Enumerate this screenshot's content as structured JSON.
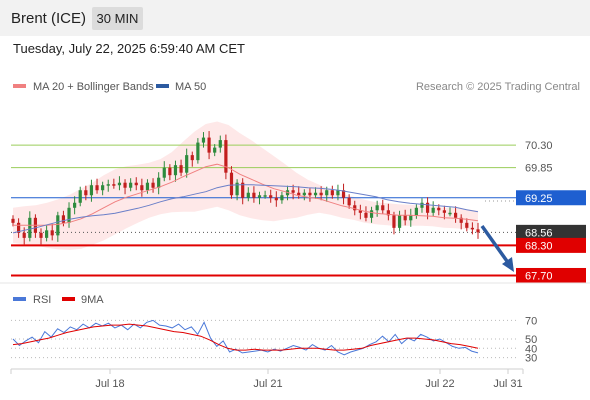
{
  "header": {
    "instrument": "Brent (ICE)",
    "interval": "30 MIN"
  },
  "datetime": "Tuesday, July 22, 2025 6:59:40 AM CET",
  "legend": {
    "ma20_label": "MA 20 + Bollinger Bands",
    "ma50_label": "MA 50",
    "ma20_color": "#f08080",
    "ma50_color": "#2c5aa0"
  },
  "copyright": "Research © 2025 Trading Central",
  "rsi_legend": {
    "rsi_label": "RSI",
    "ma9_label": "9MA",
    "rsi_color": "#4a78d8",
    "ma9_color": "#e00000"
  },
  "chart_data": {
    "type": "candlestick",
    "x_ticks": [
      "Jul 18",
      "Jul 21",
      "Jul 22",
      "Jul 31"
    ],
    "ylim": [
      67.55,
      71.0
    ],
    "levels": [
      {
        "label": "70.30",
        "value": 70.3,
        "kind": "resistance",
        "color": "#9acd5a"
      },
      {
        "label": "69.85",
        "value": 69.85,
        "kind": "resistance",
        "color": "#9acd5a"
      },
      {
        "label": "69.25",
        "value": 69.25,
        "kind": "pivot",
        "color": "#1e5fd0"
      },
      {
        "label": "68.56",
        "value": 68.56,
        "kind": "last",
        "color": "#333333"
      },
      {
        "label": "68.30",
        "value": 68.3,
        "kind": "support",
        "color": "#e00000"
      },
      {
        "label": "67.70",
        "value": 67.7,
        "kind": "support",
        "color": "#e00000"
      }
    ],
    "closes": [
      68.75,
      68.55,
      68.45,
      68.85,
      68.55,
      68.45,
      68.6,
      68.5,
      68.9,
      68.75,
      69.05,
      69.15,
      69.4,
      69.3,
      69.5,
      69.4,
      69.5,
      69.52,
      69.5,
      69.55,
      69.45,
      69.55,
      69.5,
      69.4,
      69.55,
      69.45,
      69.65,
      69.85,
      69.7,
      69.9,
      69.75,
      70.1,
      70.0,
      70.35,
      70.45,
      70.15,
      70.25,
      70.4,
      69.75,
      69.3,
      69.55,
      69.25,
      69.35,
      69.25,
      69.3,
      69.3,
      69.25,
      69.2,
      69.3,
      69.4,
      69.35,
      69.3,
      69.35,
      69.3,
      69.35,
      69.3,
      69.4,
      69.3,
      69.4,
      69.25,
      69.1,
      69.0,
      68.95,
      68.85,
      69.0,
      69.1,
      69.0,
      68.9,
      68.65,
      68.9,
      68.8,
      68.9,
      69.05,
      69.15,
      68.95,
      69.05,
      69.0,
      68.95,
      68.95,
      68.85,
      68.75,
      68.65,
      68.62,
      68.56
    ],
    "ma20": [
      68.7,
      68.7,
      68.7,
      68.7,
      68.72,
      68.76,
      68.83,
      68.93,
      69.05,
      69.17,
      69.26,
      69.33,
      69.4,
      69.47,
      69.56,
      69.67,
      69.77,
      69.87,
      69.92,
      69.85,
      69.72,
      69.62,
      69.52,
      69.43,
      69.37,
      69.3,
      69.26,
      69.23,
      69.16,
      69.09,
      69.04,
      68.98,
      68.94,
      68.92,
      68.9,
      68.9,
      68.89,
      68.88,
      68.85,
      68.84,
      68.82,
      68.79
    ],
    "ma50": [
      68.55,
      68.6,
      68.65,
      68.71,
      68.77,
      68.82,
      68.86,
      68.89,
      68.91,
      68.94,
      68.99,
      69.04,
      69.1,
      69.17,
      69.23,
      69.27,
      69.32,
      69.37,
      69.45,
      69.5,
      69.51,
      69.51,
      69.5,
      69.49,
      69.48,
      69.47,
      69.45,
      69.44,
      69.42,
      69.39,
      69.35,
      69.31,
      69.27,
      69.21,
      69.17,
      69.14,
      69.12,
      69.1,
      69.08,
      69.06,
      69.01,
      68.97
    ],
    "rsi": {
      "ylim": [
        22,
        78
      ],
      "ticks": [
        70,
        50,
        40,
        30
      ],
      "rsi_values": [
        50,
        43,
        48,
        52,
        46,
        58,
        52,
        61,
        57,
        63,
        60,
        66,
        62,
        67,
        64,
        67,
        62,
        65,
        60,
        66,
        62,
        68,
        70,
        65,
        64,
        62,
        66,
        60,
        63,
        55,
        68,
        51,
        42,
        48,
        36,
        39,
        35,
        36,
        37,
        38,
        36,
        39,
        37,
        40,
        43,
        41,
        38,
        44,
        40,
        38,
        43,
        36,
        33,
        36,
        38,
        40,
        44,
        47,
        53,
        47,
        55,
        45,
        51,
        48,
        55,
        52,
        48,
        50,
        46,
        42,
        40,
        41,
        37,
        35
      ],
      "ma9_values": [
        44,
        45,
        47,
        49,
        51,
        54,
        57,
        59,
        61,
        63,
        64,
        65,
        65,
        66,
        65,
        64,
        62,
        60,
        58,
        57,
        55,
        53,
        49,
        44,
        40,
        38,
        38,
        39,
        38,
        38,
        38,
        39,
        40,
        40,
        40,
        39,
        38,
        38,
        39,
        40,
        43,
        45,
        47,
        49,
        51,
        51,
        50,
        49,
        47,
        45,
        44,
        42,
        40
      ]
    }
  }
}
